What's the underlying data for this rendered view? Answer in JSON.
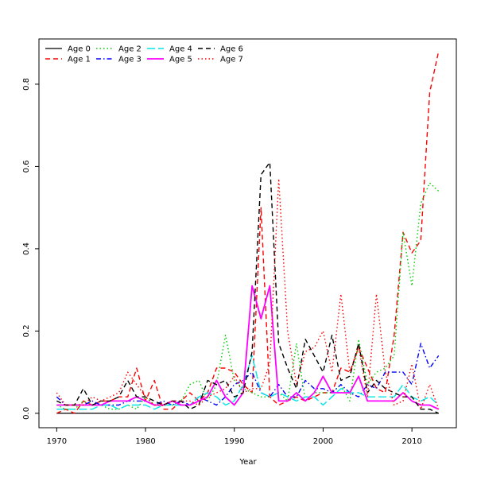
{
  "chart_data": {
    "type": "line",
    "title": "",
    "xlabel": "Year",
    "ylabel": "",
    "xlim": [
      1968,
      2015
    ],
    "ylim": [
      -0.035,
      0.91
    ],
    "x_ticks": [
      1970,
      1980,
      1990,
      2000,
      2010
    ],
    "y_ticks": [
      0.0,
      0.2,
      0.4,
      0.6,
      0.8
    ],
    "y_tick_labels": [
      "0.0",
      "0.2",
      "0.4",
      "0.6",
      "0.8"
    ],
    "legend_position": "top-left",
    "x": [
      1970,
      1971,
      1972,
      1973,
      1974,
      1975,
      1976,
      1977,
      1978,
      1979,
      1980,
      1981,
      1982,
      1983,
      1984,
      1985,
      1986,
      1987,
      1988,
      1989,
      1990,
      1991,
      1992,
      1993,
      1994,
      1995,
      1996,
      1997,
      1998,
      1999,
      2000,
      2001,
      2002,
      2003,
      2004,
      2005,
      2006,
      2007,
      2008,
      2009,
      2010,
      2011,
      2012,
      2013
    ],
    "series": [
      {
        "name": "Age 0",
        "color": "#000000",
        "dash": "solid",
        "width": 1.2,
        "values": [
          0,
          0,
          0,
          0,
          0,
          0,
          0,
          0,
          0,
          0,
          0,
          0,
          0,
          0,
          0,
          0,
          0,
          0,
          0,
          0,
          0,
          0,
          0,
          0,
          0,
          0,
          0,
          0,
          0,
          0,
          0,
          0,
          0,
          0,
          0,
          0,
          0,
          0,
          0,
          0,
          0,
          0,
          0,
          0
        ]
      },
      {
        "name": "Age 1",
        "color": "#ff0000",
        "dash": "dashed",
        "width": 1.4,
        "values": [
          0.0,
          0.01,
          0.0,
          0.03,
          0.02,
          0.03,
          0.03,
          0.04,
          0.04,
          0.11,
          0.03,
          0.08,
          0.01,
          0.01,
          0.03,
          0.05,
          0.03,
          0.05,
          0.11,
          0.11,
          0.1,
          0.07,
          0.05,
          0.5,
          0.04,
          0.02,
          0.03,
          0.04,
          0.03,
          0.04,
          0.05,
          0.05,
          0.11,
          0.1,
          0.16,
          0.11,
          0.06,
          0.05,
          0.19,
          0.44,
          0.39,
          0.42,
          0.78,
          0.88
        ]
      },
      {
        "name": "Age 2",
        "color": "#00cc00",
        "dash": "dotted",
        "width": 1.4,
        "values": [
          0.02,
          0.01,
          0.01,
          0.03,
          0.02,
          0.02,
          0.01,
          0.01,
          0.02,
          0.01,
          0.04,
          0.02,
          0.02,
          0.02,
          0.03,
          0.07,
          0.08,
          0.03,
          0.07,
          0.19,
          0.08,
          0.06,
          0.05,
          0.04,
          0.04,
          0.05,
          0.03,
          0.17,
          0.03,
          0.05,
          0.05,
          0.05,
          0.07,
          0.03,
          0.18,
          0.07,
          0.1,
          0.11,
          0.14,
          0.44,
          0.31,
          0.51,
          0.56,
          0.54
        ]
      },
      {
        "name": "Age 3",
        "color": "#0000ff",
        "dash": "dashdot",
        "width": 1.4,
        "values": [
          0.04,
          0.02,
          0.02,
          0.02,
          0.03,
          0.02,
          0.02,
          0.02,
          0.03,
          0.03,
          0.03,
          0.02,
          0.03,
          0.02,
          0.03,
          0.02,
          0.04,
          0.03,
          0.02,
          0.04,
          0.07,
          0.08,
          0.1,
          0.05,
          0.04,
          0.07,
          0.04,
          0.04,
          0.08,
          0.06,
          0.06,
          0.05,
          0.07,
          0.05,
          0.04,
          0.07,
          0.06,
          0.1,
          0.1,
          0.1,
          0.07,
          0.17,
          0.11,
          0.14
        ]
      },
      {
        "name": "Age 4",
        "color": "#00e5e5",
        "dash": "longdash",
        "width": 1.4,
        "values": [
          0.01,
          0.01,
          0.01,
          0.01,
          0.01,
          0.02,
          0.02,
          0.01,
          0.02,
          0.02,
          0.02,
          0.01,
          0.02,
          0.02,
          0.02,
          0.02,
          0.04,
          0.05,
          0.04,
          0.02,
          0.03,
          0.07,
          0.14,
          0.05,
          0.04,
          0.05,
          0.04,
          0.03,
          0.04,
          0.04,
          0.02,
          0.04,
          0.06,
          0.05,
          0.05,
          0.04,
          0.04,
          0.04,
          0.04,
          0.07,
          0.04,
          0.03,
          0.04,
          0.02
        ]
      },
      {
        "name": "Age 5",
        "color": "#ff00ff",
        "dash": "solid",
        "width": 1.8,
        "values": [
          0.02,
          0.02,
          0.02,
          0.02,
          0.02,
          0.02,
          0.03,
          0.03,
          0.03,
          0.04,
          0.03,
          0.02,
          0.02,
          0.03,
          0.02,
          0.02,
          0.03,
          0.04,
          0.08,
          0.04,
          0.02,
          0.05,
          0.31,
          0.23,
          0.31,
          0.03,
          0.03,
          0.05,
          0.03,
          0.05,
          0.09,
          0.05,
          0.05,
          0.05,
          0.09,
          0.03,
          0.03,
          0.03,
          0.03,
          0.05,
          0.03,
          0.02,
          0.02,
          0.01
        ]
      },
      {
        "name": "Age 6",
        "color": "#000000",
        "dash": "dashed",
        "width": 1.4,
        "values": [
          0.03,
          0.02,
          0.02,
          0.06,
          0.02,
          0.03,
          0.03,
          0.04,
          0.08,
          0.04,
          0.04,
          0.03,
          0.02,
          0.03,
          0.03,
          0.01,
          0.02,
          0.08,
          0.07,
          0.08,
          0.04,
          0.05,
          0.15,
          0.58,
          0.61,
          0.17,
          0.11,
          0.06,
          0.18,
          0.14,
          0.1,
          0.19,
          0.08,
          0.09,
          0.17,
          0.05,
          0.08,
          0.06,
          0.05,
          0.04,
          0.04,
          0.01,
          0.01,
          0.0
        ]
      },
      {
        "name": "Age 7",
        "color": "#ff0000",
        "dash": "dotted",
        "width": 1.4,
        "values": [
          0.05,
          0.02,
          0.02,
          0.02,
          0.04,
          0.03,
          0.04,
          0.05,
          0.1,
          0.07,
          0.04,
          0.02,
          0.02,
          0.03,
          0.03,
          0.03,
          0.02,
          0.04,
          0.05,
          0.06,
          0.09,
          0.05,
          0.06,
          0.06,
          0.12,
          0.57,
          0.2,
          0.07,
          0.15,
          0.16,
          0.2,
          0.1,
          0.29,
          0.1,
          0.16,
          0.04,
          0.29,
          0.1,
          0.02,
          0.03,
          0.12,
          0.01,
          0.07,
          0.01
        ]
      }
    ]
  }
}
